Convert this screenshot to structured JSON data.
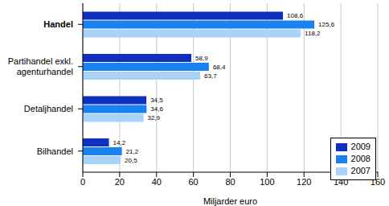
{
  "chart_data": {
    "type": "bar",
    "orientation": "horizontal",
    "categories": [
      "Handel",
      "Partihandel exkl. agenturhandel",
      "Detaljhandel",
      "Bilhandel"
    ],
    "series": [
      {
        "name": "2009",
        "color": "#1030c0",
        "values": [
          108.6,
          58.9,
          34.5,
          14.2
        ],
        "value_labels": [
          "108,6",
          "58,9",
          "34,5",
          "14,2"
        ]
      },
      {
        "name": "2008",
        "color": "#1a82f0",
        "values": [
          125.6,
          68.4,
          34.6,
          21.2
        ],
        "value_labels": [
          "125,6",
          "68,4",
          "34,6",
          "21,2"
        ]
      },
      {
        "name": "2007",
        "color": "#a8d2f8",
        "values": [
          118.2,
          63.7,
          32.9,
          20.5
        ],
        "value_labels": [
          "118,2",
          "63,7",
          "32,9",
          "20,5"
        ]
      }
    ],
    "x_label": "Miljarder euro",
    "xlim": [
      0,
      160
    ],
    "xticks": [
      0,
      20,
      40,
      60,
      80,
      100,
      120,
      140,
      160
    ],
    "grid": true,
    "legend": "lower right",
    "data_labels": true
  }
}
